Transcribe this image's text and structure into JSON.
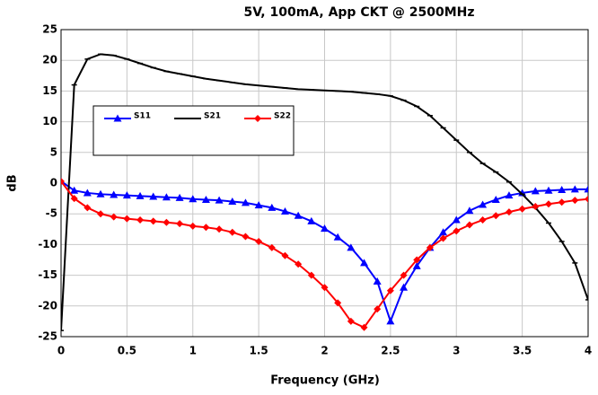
{
  "chart_data": {
    "type": "line",
    "title": "5V, 100mA, App CKT @ 2500MHz",
    "xlabel": "Frequency (GHz)",
    "ylabel": "dB",
    "x": [
      0,
      0.1,
      0.2,
      0.3,
      0.4,
      0.5,
      0.6,
      0.7,
      0.8,
      0.9,
      1,
      1.1,
      1.2,
      1.3,
      1.4,
      1.5,
      1.6,
      1.7,
      1.8,
      1.9,
      2,
      2.1,
      2.2,
      2.3,
      2.4,
      2.5,
      2.6,
      2.7,
      2.8,
      2.9,
      3,
      3.1,
      3.2,
      3.3,
      3.4,
      3.5,
      3.6,
      3.7,
      3.8,
      3.9,
      4
    ],
    "series": [
      {
        "name": "S11",
        "color": "#0000ff",
        "marker": "triangle",
        "values": [
          0.3,
          -1.2,
          -1.6,
          -1.8,
          -1.9,
          -2.0,
          -2.1,
          -2.2,
          -2.3,
          -2.4,
          -2.6,
          -2.7,
          -2.8,
          -3.0,
          -3.2,
          -3.6,
          -4.0,
          -4.6,
          -5.3,
          -6.2,
          -7.4,
          -8.8,
          -10.5,
          -13,
          -16,
          -22.5,
          -17,
          -13.5,
          -10.5,
          -8,
          -6,
          -4.5,
          -3.5,
          -2.7,
          -2,
          -1.6,
          -1.3,
          -1.2,
          -1.1,
          -1.0,
          -1.0
        ]
      },
      {
        "name": "S21",
        "color": "#000000",
        "marker": "tick",
        "values": [
          -24,
          16,
          20.2,
          21,
          20.8,
          20.2,
          19.5,
          18.8,
          18.2,
          17.8,
          17.4,
          17,
          16.7,
          16.4,
          16.1,
          15.9,
          15.7,
          15.5,
          15.3,
          15.2,
          15.1,
          15,
          14.9,
          14.7,
          14.5,
          14.2,
          13.5,
          12.5,
          11,
          9,
          7,
          5,
          3.2,
          1.8,
          0.2,
          -1.8,
          -4,
          -6.5,
          -9.5,
          -13,
          -19
        ]
      },
      {
        "name": "S22",
        "color": "#ff0000",
        "marker": "diamond",
        "values": [
          0.3,
          -2.5,
          -4,
          -5,
          -5.5,
          -5.8,
          -6,
          -6.2,
          -6.4,
          -6.6,
          -7,
          -7.2,
          -7.5,
          -8,
          -8.7,
          -9.5,
          -10.5,
          -11.8,
          -13.2,
          -15,
          -17,
          -19.5,
          -22.5,
          -23.5,
          -20.5,
          -17.5,
          -15,
          -12.5,
          -10.5,
          -9,
          -7.8,
          -6.8,
          -6,
          -5.3,
          -4.7,
          -4.2,
          -3.8,
          -3.4,
          -3.1,
          -2.8,
          -2.6
        ]
      }
    ],
    "xlim": [
      0,
      4
    ],
    "xticks": [
      0,
      0.5,
      1,
      1.5,
      2,
      2.5,
      3,
      3.5,
      4
    ],
    "ylim": [
      -25,
      25
    ],
    "yticks": [
      25,
      20,
      15,
      10,
      5,
      0,
      -5,
      -10,
      -15,
      -20,
      -25
    ],
    "grid": true
  }
}
